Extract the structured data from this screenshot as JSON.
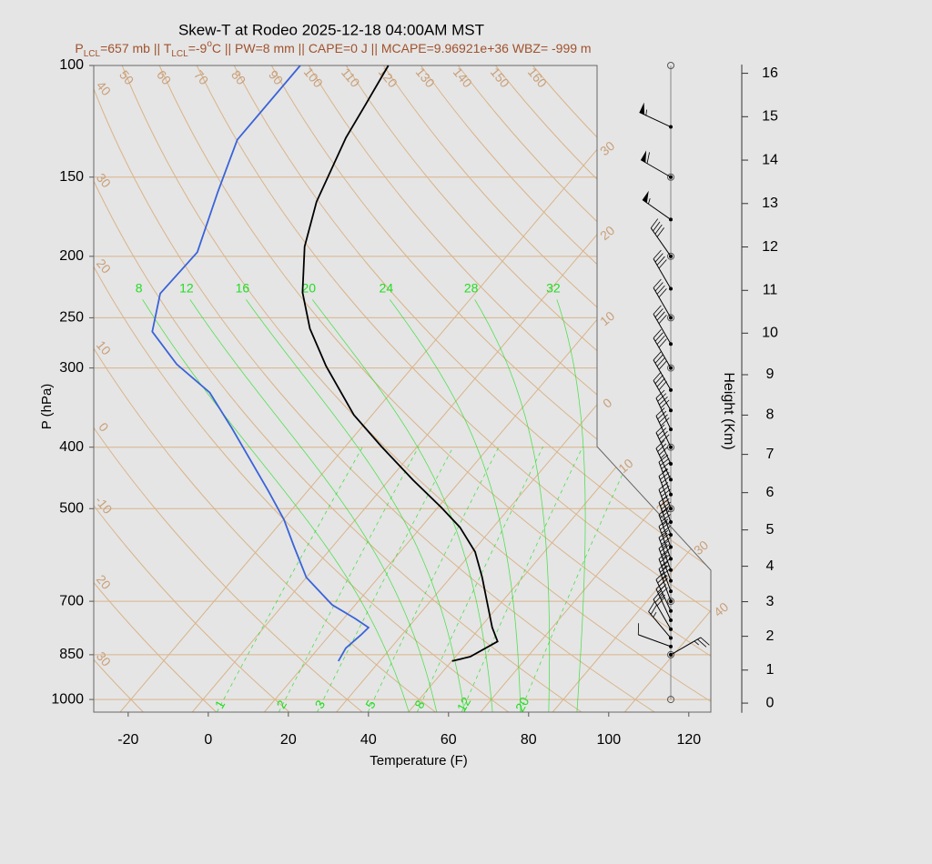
{
  "chart_data": {
    "type": "skew-t",
    "title": "Skew-T at Rodeo 2025-12-18 04:00AM MST",
    "subtitle": [
      {
        "text": "P"
      },
      {
        "text": "LCL",
        "sub": true
      },
      {
        "text": "=657 mb || T"
      },
      {
        "text": "LCL",
        "sub": true
      },
      {
        "text": "=-9"
      },
      {
        "text": "o",
        "sup": true
      },
      {
        "text": "C || PW=8 mm || CAPE=0 J || MCAPE=9.96921e+36 WBZ= -999 m"
      }
    ],
    "subtitle_color": "#a0522d",
    "xlabel": "Temperature (F)",
    "ylabel": "P (hPa)",
    "y2label": "Height (Km)",
    "xlim": [
      -28.6,
      125.5
    ],
    "xticks": [
      -20,
      0,
      20,
      40,
      60,
      80,
      100,
      120
    ],
    "ylim": [
      1047,
      100
    ],
    "yscale": "log",
    "yticks": [
      1000,
      850,
      700,
      500,
      400,
      300,
      250,
      200,
      150,
      100
    ],
    "y2lim": [
      -0.3,
      16.2
    ],
    "y2ticks": [
      0,
      1,
      2,
      3,
      4,
      5,
      6,
      7,
      8,
      9,
      10,
      11,
      12,
      13,
      14,
      15,
      16
    ],
    "grid": true,
    "reference_color": "#d9b48a",
    "label_color": "#c9a07a",
    "moist_color": "#22dd22",
    "isotherms": [
      {
        "value": -30,
        "label": "30"
      },
      {
        "value": -20,
        "label": "20"
      },
      {
        "value": -10,
        "label": "10"
      },
      0,
      10,
      20,
      30,
      40
    ],
    "dry_adiabats": [
      {
        "value": -30,
        "label": "30"
      },
      {
        "value": -20,
        "label": "20"
      },
      -10,
      0,
      10,
      20,
      30,
      40,
      50,
      60,
      70,
      80,
      90,
      100,
      110,
      120,
      130,
      140,
      150,
      160
    ],
    "moist_adiabats": [
      8,
      12,
      16,
      20,
      24,
      28,
      32
    ],
    "mixing_ratios": [
      1,
      2,
      3,
      5,
      8,
      12,
      20
    ],
    "temperature": {
      "color": "#000000",
      "pressure": [
        870,
        856,
        810,
        770,
        698,
        642,
        585,
        535,
        498,
        451,
        399,
        356,
        298,
        260,
        228,
        193,
        164,
        130,
        116,
        100
      ],
      "values": [
        50.1,
        53.7,
        57.3,
        53.0,
        45.9,
        39.9,
        32.7,
        23.7,
        14.9,
        2.1,
        -13.0,
        -26.5,
        -43.8,
        -55.8,
        -65.3,
        -74.5,
        -81.0,
        -87.2,
        -89.2,
        -91.9
      ]
    },
    "dewpoint": {
      "color": "#3a63d8",
      "pressure": [
        870,
        830,
        791,
        770,
        745,
        709,
        642,
        572,
        520,
        469,
        373,
        328,
        296,
        263,
        229,
        197,
        158,
        131,
        100
      ],
      "values": [
        21.7,
        20.8,
        21.8,
        22.1,
        16.8,
        8.2,
        -4.0,
        -13.9,
        -21.9,
        -31.8,
        -54.3,
        -67.3,
        -81.5,
        -94.5,
        -100.6,
        -100.1,
        -107.8,
        -113.9,
        -113.9
      ]
    },
    "winds": {
      "pressure": [
        850,
        825,
        800,
        775,
        750,
        725,
        700,
        675,
        650,
        625,
        600,
        575,
        550,
        525,
        500,
        475,
        450,
        425,
        400,
        375,
        350,
        325,
        300,
        275,
        250,
        225,
        200,
        175,
        150,
        125
      ],
      "direction": [
        60,
        290,
        320,
        330,
        335,
        335,
        340,
        340,
        340,
        340,
        340,
        340,
        340,
        340,
        340,
        340,
        335,
        335,
        335,
        335,
        330,
        330,
        330,
        330,
        330,
        330,
        325,
        305,
        300,
        295
      ],
      "speed": [
        25,
        10,
        25,
        30,
        35,
        35,
        35,
        35,
        35,
        35,
        35,
        35,
        35,
        35,
        35,
        35,
        35,
        40,
        40,
        40,
        40,
        40,
        40,
        40,
        40,
        40,
        40,
        55,
        60,
        55
      ]
    }
  }
}
